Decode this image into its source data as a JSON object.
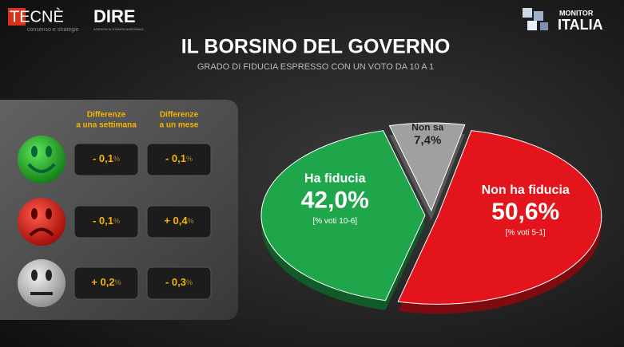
{
  "logos": {
    "tecne": "TECNÈ",
    "tecne_sub": "consenso e strategie",
    "dire": "DIRE",
    "dire_sub": "AGENZIA DI STAMPA NAZIONALE",
    "monitor": "MONITOR",
    "italia": "ITALIA"
  },
  "chart_data": {
    "type": "pie",
    "title": "IL BORSINO DEL GOVERNO",
    "subtitle": "GRADO DI FIDUCIA ESPRESSO CON UN VOTO DA 10  A 1",
    "categories": [
      "Ha fiducia",
      "Non sa",
      "Non ha fiducia"
    ],
    "values": [
      42.0,
      7.4,
      50.6
    ],
    "value_labels": [
      "42,0%",
      "7,4%",
      "50,6%"
    ],
    "notes": [
      "[% voti 10-6]",
      null,
      "[% voti 5-1]"
    ],
    "colors": [
      "#1fa64a",
      "#a0a0a0",
      "#e3141b"
    ]
  },
  "differences": {
    "headers": [
      [
        "Differenze",
        "a una settimana"
      ],
      [
        "Differenze",
        "a un mese"
      ]
    ],
    "rows": [
      [
        {
          "value": "- 0,1",
          "unit": "%"
        },
        {
          "value": "- 0,1",
          "unit": "%"
        }
      ],
      [
        {
          "value": "- 0,1",
          "unit": "%"
        },
        {
          "value": "+ 0,4",
          "unit": "%"
        }
      ],
      [
        {
          "value": "+ 0,2",
          "unit": "%"
        },
        {
          "value": "- 0,3",
          "unit": "%"
        }
      ]
    ]
  }
}
